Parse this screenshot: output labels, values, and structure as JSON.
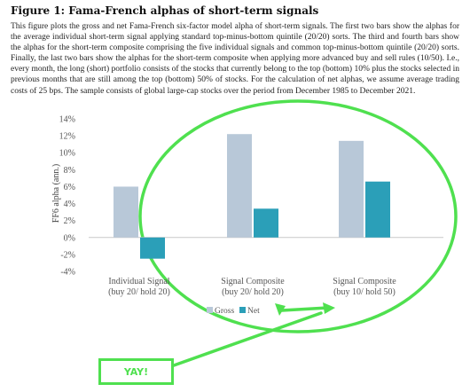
{
  "figure": {
    "title": "Figure 1: Fama-French alphas of short-term signals",
    "caption": "This figure plots the gross and net Fama-French six-factor model alpha of short-term signals. The first two bars show the alphas for the average individual short-term signal applying standard top-minus-bottom quintile (20/20) sorts. The third and fourth bars show the alphas for the short-term composite comprising the five individual signals and common top-minus-bottom quintile (20/20) sorts. Finally, the last two bars show the alphas for the short-term composite when applying more advanced buy and sell rules (10/50). I.e., every month, the long (short) portfolio consists of the stocks that currently belong to the top (bottom) 10% plus the stocks selected in previous months that are still among the top (bottom) 50% of stocks. For the calculation of net alphas, we assume average trading costs of 25 bps. The sample consists of global large-cap stocks over the period from December 1985 to December 2021."
  },
  "annotation": {
    "yay_text": "YAY!",
    "highlight_color": "#4fe04f"
  },
  "chart_data": {
    "type": "bar",
    "categories": [
      [
        "Individual Signal",
        "(buy 20/ hold 20)"
      ],
      [
        "Signal Composite",
        "(buy 20/ hold 20)"
      ],
      [
        "Signal Composite",
        "(buy 10/ hold 50)"
      ]
    ],
    "series": [
      {
        "name": "Gross",
        "values": [
          6.0,
          12.2,
          11.4
        ],
        "color": "#b8c8d8"
      },
      {
        "name": "Net",
        "values": [
          -2.5,
          3.4,
          6.6
        ],
        "color": "#2b9fb8"
      }
    ],
    "ylabel": "FF6 alpha (ann.)",
    "ylim": [
      -4,
      14
    ],
    "yticks": [
      -4,
      -2,
      0,
      2,
      4,
      6,
      8,
      10,
      12,
      14
    ],
    "ytick_labels": [
      "-4%",
      "-2%",
      "0%",
      "2%",
      "4%",
      "6%",
      "8%",
      "10%",
      "12%",
      "14%"
    ],
    "legend_position": "bottom-center",
    "grid": false
  }
}
